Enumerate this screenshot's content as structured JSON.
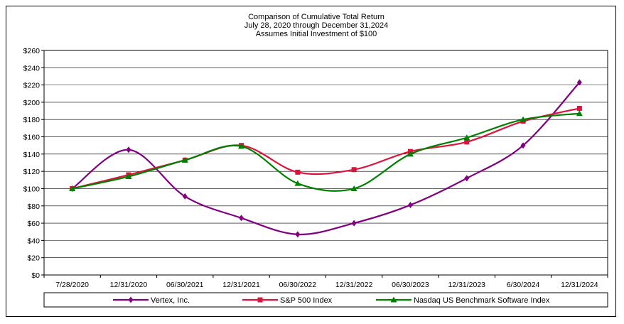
{
  "chart_data": {
    "type": "line",
    "title": "Comparison of Cumulative Total Return",
    "subtitle": "July 28, 2020 through December 31,2024",
    "subtitle2": "Assumes Initial Investment of $100",
    "categories": [
      "7/28/2020",
      "12/31/2020",
      "06/30/2021",
      "12/31/2021",
      "06/30/2022",
      "12/31/2022",
      "06/30/2023",
      "12/31/2023",
      "6/30/2024",
      "12/31/2024"
    ],
    "series": [
      {
        "name": "Vertex, Inc.",
        "color": "#800080",
        "marker": "diamond",
        "values": [
          100,
          145,
          91,
          66,
          47,
          60,
          81,
          112,
          150,
          223
        ]
      },
      {
        "name": "S&P 500 Index",
        "color": "#dc143c",
        "marker": "square",
        "values": [
          100,
          116,
          133,
          150,
          119,
          122,
          143,
          154,
          178,
          193
        ]
      },
      {
        "name": "Nasdaq US Benchmark Software Index",
        "color": "#008000",
        "marker": "triangle",
        "values": [
          100,
          114,
          133,
          149,
          106,
          100,
          140,
          159,
          180,
          187
        ]
      }
    ],
    "y_ticks": [
      "$0",
      "$20",
      "$40",
      "$60",
      "$80",
      "$100",
      "$120",
      "$140",
      "$160",
      "$180",
      "$200",
      "$220",
      "$240",
      "$260"
    ],
    "ylim": [
      0,
      260
    ],
    "xlabel": "",
    "ylabel": "",
    "grid": true,
    "legend_position": "bottom"
  }
}
